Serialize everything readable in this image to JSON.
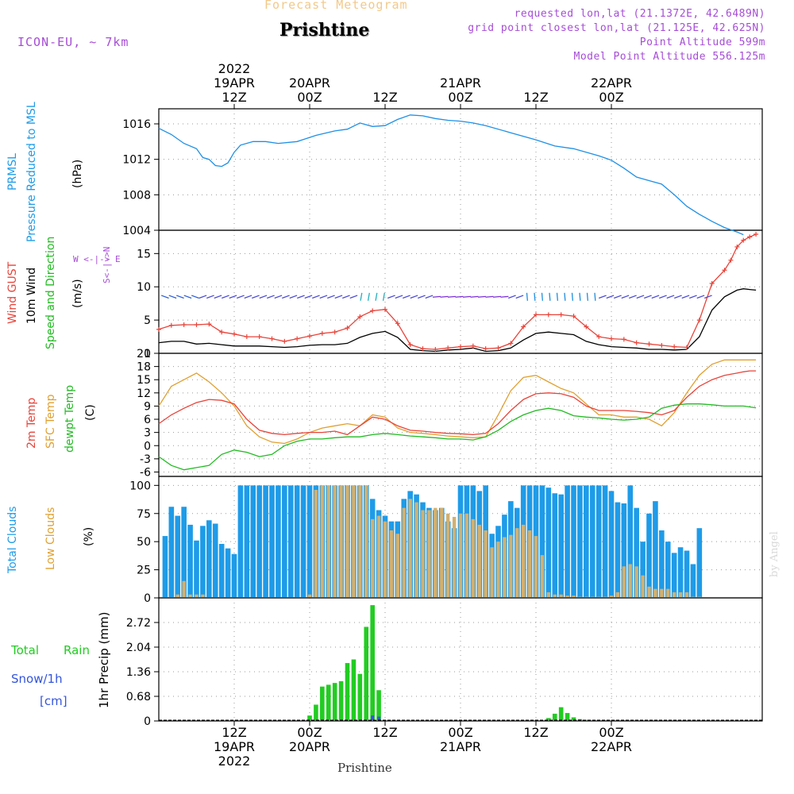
{
  "header": {
    "subtitle": "Forecast Meteogram",
    "location": "Prishtine",
    "model": "ICON-EU, ~ 7km",
    "requested": "requested lon,lat (21.1372E, 42.6489N)",
    "grid_point": "grid point closest lon,lat (21.125E, 42.625N)",
    "point_altitude": "Point Altitude 599m",
    "model_altitude": "Model Point Altitude 556.125m",
    "footer_location": "Prishtine",
    "credit": "by Angel"
  },
  "time_axis": {
    "top": [
      {
        "time": "12Z",
        "date": "19APR",
        "year": "2022",
        "hour": 12
      },
      {
        "time": "00Z",
        "date": "20APR",
        "year": "",
        "hour": 24
      },
      {
        "time": "12Z",
        "date": "",
        "year": "",
        "hour": 36
      },
      {
        "time": "00Z",
        "date": "21APR",
        "year": "",
        "hour": 48
      },
      {
        "time": "12Z",
        "date": "",
        "year": "",
        "hour": 60
      },
      {
        "time": "00Z",
        "date": "22APR",
        "year": "",
        "hour": 72
      }
    ],
    "bottom": [
      {
        "time": "12Z",
        "date": "19APR",
        "year": "2022",
        "hour": 12
      },
      {
        "time": "00Z",
        "date": "20APR",
        "year": "",
        "hour": 24
      },
      {
        "time": "12Z",
        "date": "",
        "year": "",
        "hour": 36
      },
      {
        "time": "00Z",
        "date": "21APR",
        "year": "",
        "hour": 48
      },
      {
        "time": "12Z",
        "date": "",
        "year": "",
        "hour": 60
      },
      {
        "time": "00Z",
        "date": "22APR",
        "year": "",
        "hour": 72
      }
    ]
  },
  "panel_labels": {
    "pressure": {
      "name": "PRMSL",
      "desc": "Pressure Reduced to MSL",
      "unit": "(hPa)"
    },
    "wind": {
      "gust": "Wind GUST",
      "wind10": "10m Wind",
      "dir": "Speed and Direction",
      "unit": "(m/s)",
      "compass_ns": "S<-|->N",
      "compass_we": "W <-|-> E"
    },
    "temp": {
      "t2m": "2m Temp",
      "sfc": "SFC Temp",
      "dew": "dewpt Temp",
      "unit": "(C)"
    },
    "clouds": {
      "total": "Total Clouds",
      "low": "Low Clouds",
      "unit": "(%)"
    },
    "precip": {
      "total": "Total",
      "rain": "Rain",
      "snow": "Snow/1h",
      "cm": "[cm]",
      "ylabel": "1hr Precip (mm)"
    }
  },
  "colors": {
    "pressure": "#1e90e6",
    "gust": "#e8443a",
    "wind": "#000000",
    "t2m": "#e8443a",
    "sfc": "#e0a030",
    "dew": "#22bb22",
    "total_cloud": "#1e9be8",
    "low_cloud": "#d2b070",
    "rain": "#22cc22",
    "snow": "#3355dd",
    "label_purple": "#a64dd6",
    "label_blue": "#1e9be8",
    "label_red": "#e8443a",
    "label_orange": "#e0a030",
    "label_green": "#22bb22"
  },
  "chart_data": [
    {
      "type": "line",
      "title": "PRMSL Pressure Reduced to MSL",
      "ylabel": "(hPa)",
      "xlim": [
        0,
        96
      ],
      "ylim": [
        1004,
        1017.7
      ],
      "yticks": [
        1004,
        1008,
        1012,
        1016
      ],
      "ytick_labels": [
        "1004",
        "1008",
        "1012",
        "1016"
      ],
      "series": [
        {
          "name": "PRMSL",
          "x": [
            0,
            2,
            4,
            6,
            7,
            8,
            9,
            10,
            11,
            12,
            13,
            15,
            17,
            19,
            22,
            25,
            28,
            30,
            32,
            34,
            36,
            38,
            40,
            42,
            44,
            46,
            48,
            50,
            52,
            56,
            60,
            63,
            66,
            70,
            72,
            74,
            76,
            78,
            80,
            82,
            84,
            86,
            88,
            90,
            92,
            93
          ],
          "values": [
            1015.5,
            1014.8,
            1013.8,
            1013.2,
            1012.2,
            1012.0,
            1011.3,
            1011.2,
            1011.6,
            1012.8,
            1013.6,
            1014.0,
            1014.0,
            1013.8,
            1014.0,
            1014.7,
            1015.2,
            1015.4,
            1016.1,
            1015.7,
            1015.8,
            1016.5,
            1017.0,
            1016.9,
            1016.6,
            1016.4,
            1016.3,
            1016.1,
            1015.8,
            1015.0,
            1014.2,
            1013.5,
            1013.2,
            1012.4,
            1011.9,
            1011.0,
            1010.0,
            1009.6,
            1009.2,
            1008.0,
            1006.7,
            1005.8,
            1005.0,
            1004.3,
            1003.8,
            1003.5
          ]
        }
      ]
    },
    {
      "type": "line",
      "title": "Wind GUST / 10m Wind Speed and Direction",
      "ylabel": "(m/s)",
      "xlim": [
        0,
        96
      ],
      "ylim": [
        0,
        18.5
      ],
      "yticks": [
        0,
        5,
        10,
        15
      ],
      "ytick_labels": [
        "0",
        "5",
        "10",
        "15"
      ],
      "series": [
        {
          "name": "Wind GUST",
          "x": [
            0,
            2,
            4,
            6,
            8,
            10,
            12,
            14,
            16,
            18,
            20,
            22,
            24,
            26,
            28,
            30,
            32,
            34,
            36,
            38,
            40,
            42,
            44,
            46,
            48,
            50,
            52,
            54,
            56,
            58,
            60,
            62,
            64,
            66,
            68,
            70,
            72,
            74,
            76,
            78,
            80,
            82,
            84,
            86,
            88,
            90,
            91,
            92,
            93,
            94,
            95
          ],
          "values": [
            3.6,
            4.2,
            4.3,
            4.3,
            4.4,
            3.2,
            2.9,
            2.5,
            2.5,
            2.2,
            1.8,
            2.2,
            2.6,
            3.0,
            3.2,
            3.8,
            5.5,
            6.4,
            6.6,
            4.5,
            1.3,
            0.7,
            0.6,
            0.8,
            1.0,
            1.1,
            0.7,
            0.8,
            1.5,
            4.0,
            5.8,
            5.8,
            5.8,
            5.6,
            4.0,
            2.5,
            2.2,
            2.1,
            1.6,
            1.4,
            1.2,
            1.0,
            0.9,
            5.0,
            10.5,
            12.5,
            14.0,
            16.0,
            17.0,
            17.5,
            17.9
          ]
        },
        {
          "name": "10m Wind",
          "x": [
            0,
            2,
            4,
            6,
            8,
            10,
            12,
            14,
            16,
            18,
            20,
            22,
            24,
            26,
            28,
            30,
            32,
            34,
            36,
            38,
            40,
            42,
            44,
            46,
            48,
            50,
            52,
            54,
            56,
            58,
            60,
            62,
            64,
            66,
            68,
            70,
            72,
            74,
            76,
            78,
            80,
            82,
            84,
            86,
            88,
            90,
            92,
            93,
            94,
            95
          ],
          "values": [
            1.6,
            1.8,
            1.8,
            1.4,
            1.5,
            1.3,
            1.1,
            1.1,
            1.1,
            1.0,
            0.9,
            1.0,
            1.2,
            1.3,
            1.3,
            1.5,
            2.4,
            3.0,
            3.3,
            2.4,
            0.6,
            0.4,
            0.3,
            0.5,
            0.6,
            0.8,
            0.3,
            0.4,
            0.8,
            2.0,
            3.0,
            3.2,
            3.0,
            2.8,
            1.8,
            1.3,
            1.0,
            0.9,
            0.8,
            0.6,
            0.6,
            0.5,
            0.6,
            2.5,
            6.5,
            8.5,
            9.5,
            9.7,
            9.6,
            9.5
          ]
        }
      ]
    },
    {
      "type": "line",
      "title": "2m Temp / SFC Temp / dewpt Temp",
      "ylabel": "(C)",
      "xlim": [
        0,
        96
      ],
      "ylim": [
        -7,
        21
      ],
      "yticks": [
        -6,
        -3,
        0,
        3,
        6,
        9,
        12,
        15,
        18,
        21
      ],
      "ytick_labels": [
        "-6",
        "-3",
        "0",
        "3",
        "6",
        "9",
        "12",
        "15",
        "18",
        "21"
      ],
      "series": [
        {
          "name": "2m Temp",
          "x": [
            0,
            2,
            4,
            6,
            8,
            10,
            12,
            14,
            16,
            18,
            20,
            22,
            24,
            26,
            28,
            30,
            32,
            34,
            36,
            38,
            40,
            42,
            44,
            46,
            48,
            50,
            52,
            54,
            56,
            58,
            60,
            62,
            64,
            66,
            68,
            70,
            72,
            74,
            76,
            78,
            80,
            82,
            84,
            86,
            88,
            90,
            92,
            93,
            94,
            95
          ],
          "values": [
            5.0,
            7.0,
            8.5,
            9.8,
            10.5,
            10.3,
            9.5,
            6.0,
            3.5,
            2.8,
            2.5,
            2.8,
            3.0,
            3.0,
            3.3,
            2.5,
            4.5,
            6.5,
            6.0,
            4.5,
            3.5,
            3.3,
            3.0,
            2.8,
            2.7,
            2.5,
            2.8,
            5.0,
            8.0,
            10.5,
            11.8,
            12.0,
            11.8,
            11.0,
            9.0,
            8.0,
            8.0,
            8.0,
            7.8,
            7.5,
            7.0,
            8.0,
            11.0,
            13.5,
            15.0,
            16.0,
            16.5,
            16.8,
            17.0,
            17.0
          ]
        },
        {
          "name": "SFC Temp",
          "x": [
            0,
            2,
            4,
            6,
            8,
            10,
            12,
            14,
            16,
            18,
            20,
            22,
            24,
            26,
            28,
            30,
            32,
            34,
            36,
            38,
            40,
            42,
            44,
            46,
            48,
            50,
            52,
            54,
            56,
            58,
            60,
            62,
            64,
            66,
            68,
            70,
            72,
            74,
            76,
            78,
            80,
            82,
            84,
            86,
            88,
            90,
            92,
            93,
            94,
            95
          ],
          "values": [
            9.0,
            13.5,
            15.0,
            16.5,
            14.5,
            12.0,
            9.0,
            4.5,
            2.0,
            0.8,
            0.5,
            1.5,
            3.0,
            4.0,
            4.5,
            5.0,
            4.5,
            7.0,
            6.5,
            4.0,
            3.0,
            2.8,
            2.5,
            2.2,
            2.0,
            1.8,
            2.0,
            7.0,
            12.5,
            15.5,
            16.0,
            14.5,
            13.0,
            12.0,
            9.5,
            7.0,
            7.0,
            6.5,
            6.5,
            6.0,
            4.5,
            7.5,
            12.0,
            16.0,
            18.5,
            19.5,
            19.5,
            19.5,
            19.5,
            19.5
          ]
        },
        {
          "name": "dewpt Temp",
          "x": [
            0,
            2,
            4,
            6,
            8,
            10,
            12,
            14,
            16,
            18,
            20,
            22,
            24,
            26,
            28,
            30,
            32,
            34,
            36,
            38,
            40,
            42,
            44,
            46,
            48,
            50,
            52,
            54,
            56,
            58,
            60,
            62,
            64,
            66,
            68,
            70,
            72,
            74,
            76,
            78,
            80,
            82,
            84,
            86,
            88,
            90,
            92,
            93,
            94,
            95
          ],
          "values": [
            -2.5,
            -4.5,
            -5.5,
            -5.0,
            -4.5,
            -2.0,
            -1.0,
            -1.5,
            -2.5,
            -2.0,
            0.0,
            1.0,
            1.5,
            1.5,
            1.8,
            2.0,
            2.0,
            2.5,
            2.8,
            2.5,
            2.2,
            2.0,
            1.8,
            1.5,
            1.5,
            1.3,
            2.0,
            3.5,
            5.5,
            7.0,
            8.0,
            8.5,
            8.0,
            6.8,
            6.5,
            6.3,
            6.0,
            5.8,
            6.0,
            6.5,
            8.5,
            9.2,
            9.5,
            9.5,
            9.3,
            9.0,
            9.0,
            9.0,
            8.8,
            8.6
          ]
        }
      ]
    },
    {
      "type": "bar",
      "title": "Total Clouds / Low Clouds",
      "ylabel": "(%)",
      "xlim": [
        0,
        96
      ],
      "ylim": [
        0,
        108
      ],
      "yticks": [
        0,
        25,
        50,
        75,
        100
      ],
      "ytick_labels": [
        "0",
        "25",
        "50",
        "75",
        "100"
      ],
      "series": [
        {
          "name": "Total Clouds",
          "x_start": 1,
          "values": [
            55,
            81,
            73,
            81,
            65,
            51,
            64,
            69,
            66,
            48,
            44,
            39,
            100,
            100,
            100,
            100,
            100,
            100,
            100,
            100,
            100,
            100,
            100,
            100,
            100,
            100,
            100,
            100,
            100,
            100,
            100,
            100,
            100,
            88,
            78,
            73,
            68,
            68,
            88,
            95,
            92,
            85,
            80,
            78,
            80,
            68,
            62,
            100,
            100,
            100,
            95,
            100,
            57,
            64,
            74,
            86,
            80,
            100,
            100,
            100,
            100,
            98,
            93,
            92,
            100,
            100,
            100,
            100,
            100,
            100,
            100,
            95,
            85,
            84,
            100,
            80,
            50,
            75,
            86,
            60,
            50,
            40,
            45,
            42,
            30,
            62
          ]
        },
        {
          "name": "Low Clouds",
          "x_start": 1,
          "values": [
            0,
            0,
            3,
            15,
            3,
            3,
            3,
            0,
            0,
            0,
            0,
            0,
            0,
            0,
            0,
            0,
            0,
            0,
            0,
            0,
            0,
            0,
            0,
            3,
            96,
            100,
            100,
            100,
            100,
            100,
            100,
            100,
            100,
            70,
            73,
            68,
            60,
            57,
            80,
            88,
            85,
            78,
            78,
            80,
            80,
            75,
            72,
            75,
            75,
            70,
            65,
            60,
            45,
            50,
            54,
            56,
            62,
            65,
            60,
            55,
            38,
            5,
            3,
            3,
            2,
            2,
            1,
            1,
            1,
            1,
            1,
            2,
            5,
            28,
            30,
            28,
            20,
            10,
            8,
            8,
            8,
            5,
            5,
            5,
            1,
            1
          ]
        }
      ]
    },
    {
      "type": "bar",
      "title": "1hr Precip (mm)",
      "ylabel": "1hr Precip (mm)",
      "xlim": [
        0,
        96
      ],
      "ylim": [
        0,
        3.4
      ],
      "yticks": [
        0,
        0.68,
        1.36,
        2.04,
        2.72
      ],
      "ytick_labels": [
        "0",
        "0.68",
        "1.36",
        "2.04",
        "2.72"
      ],
      "series": [
        {
          "name": "Total Rain",
          "x": [
            24,
            25,
            26,
            27,
            28,
            29,
            30,
            31,
            32,
            33,
            34,
            35,
            36,
            62,
            63,
            64,
            65,
            66,
            67,
            68,
            69,
            70
          ],
          "values": [
            0.15,
            0.45,
            0.95,
            1.0,
            1.05,
            1.1,
            1.6,
            1.7,
            1.3,
            2.6,
            3.2,
            0.85,
            0.0,
            0.08,
            0.2,
            0.38,
            0.22,
            0.1,
            0.05,
            0.03,
            0.02,
            0.01
          ]
        },
        {
          "name": "Snow/1h",
          "x": [
            34,
            35
          ],
          "values": [
            0.15,
            0.12
          ]
        }
      ]
    }
  ]
}
